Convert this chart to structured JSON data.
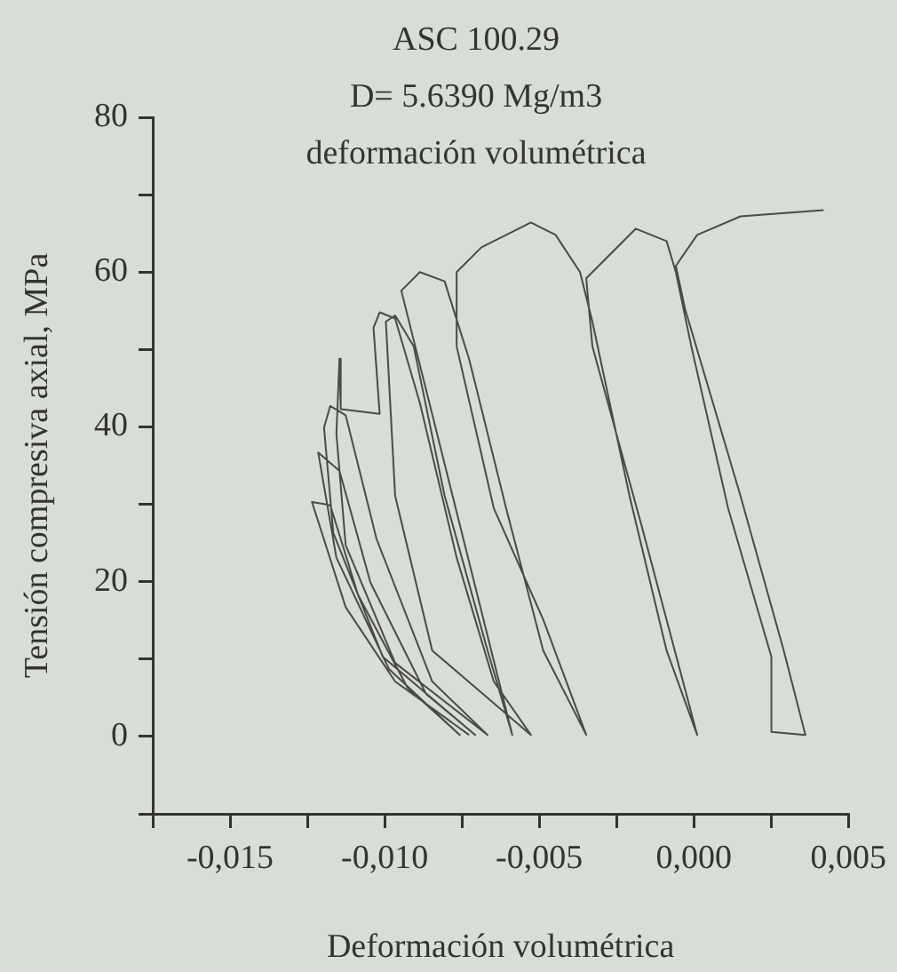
{
  "chart_data": {
    "type": "line",
    "title": "ASC 100.29",
    "subtitle": "D= 5.6390 Mg/m3\ndeformación volumétrica",
    "xlabel": "Deformación volumétrica",
    "ylabel": "Tensión compresiva axial, MPa",
    "xlim": [
      -0.0175,
      0.005
    ],
    "xticks": [
      {
        "value": -0.0175,
        "label": null
      },
      {
        "value": -0.015,
        "label": "-0,015"
      },
      {
        "value": -0.0125,
        "label": null
      },
      {
        "value": -0.01,
        "label": "-0,010"
      },
      {
        "value": -0.0075,
        "label": null
      },
      {
        "value": -0.005,
        "label": "-0,005"
      },
      {
        "value": -0.0025,
        "label": null
      },
      {
        "value": 0,
        "label": "0,000"
      },
      {
        "value": 0.0025,
        "label": null
      },
      {
        "value": 0.005,
        "label": "0,005"
      }
    ],
    "ylim": [
      -10,
      80
    ],
    "yticks": [
      {
        "value": -10,
        "label": null
      },
      0,
      {
        "value": 10,
        "label": null
      },
      20,
      {
        "value": 30,
        "label": null
      },
      40,
      {
        "value": 50,
        "label": null
      },
      60,
      {
        "value": 70,
        "label": null
      },
      80
    ],
    "grid": false,
    "legend": false,
    "marker": "none",
    "line_style": "solid",
    "series": [
      {
        "color": "#4a4a4a",
        "x": [
          -0.00727,
          -0.00966,
          -0.01126,
          -0.01235,
          -0.01176,
          -0.01086,
          -0.00926,
          -0.00757,
          -0.00986,
          -0.01156,
          -0.01215,
          -0.01146,
          -0.01046,
          -0.00866,
          -0.00707,
          -0.01006,
          -0.01166,
          -0.01196,
          -0.01176,
          -0.01126,
          -0.01026,
          -0.00846,
          -0.00667,
          -0.00966,
          -0.01126,
          -0.01156,
          -0.01146,
          -0.01142,
          -0.01016,
          -0.01036,
          -0.01016,
          -0.00966,
          -0.00886,
          -0.00767,
          -0.00647,
          -0.00527,
          -0.00846,
          -0.00966,
          -0.00996,
          -0.00966,
          -0.00906,
          -0.00806,
          -0.00667,
          -0.00587,
          -0.00946,
          -0.00886,
          -0.00806,
          -0.00727,
          -0.00607,
          -0.00487,
          -0.00348,
          -0.00487,
          -0.00647,
          -0.00767,
          -0.00767,
          -0.00687,
          -0.00527,
          -0.00447,
          -0.00368,
          -0.00328,
          -0.00208,
          -0.00088,
          0.00011,
          -0.00168,
          -0.00328,
          -0.00348,
          -0.00188,
          -0.00088,
          -0.00058,
          -8e-05,
          0.00111,
          0.00251,
          0.00251,
          0.00361,
          0.00291,
          0.00151,
          -0.00028,
          -0.00058,
          0.00011,
          0.00151,
          0.0042
        ],
        "values": [
          0.2,
          7.1,
          16.7,
          30.3,
          29.9,
          18.3,
          6.3,
          0.2,
          8.7,
          23.1,
          36.7,
          34.3,
          19.9,
          5.5,
          0.2,
          10.3,
          26.3,
          39.9,
          42.7,
          41.5,
          25.5,
          7.1,
          0.2,
          9.5,
          24.7,
          39.1,
          48.8,
          42.3,
          41.7,
          52.8,
          54.8,
          54.0,
          43.1,
          23.1,
          7.1,
          0.2,
          11.1,
          31.1,
          53.6,
          54.4,
          50.4,
          31.1,
          11.1,
          0.2,
          57.6,
          60.0,
          58.8,
          48.8,
          29.5,
          11.1,
          0.2,
          15.1,
          29.5,
          50.4,
          60.0,
          63.2,
          66.4,
          64.8,
          60.0,
          53.6,
          31.1,
          11.1,
          0.2,
          27.1,
          50.4,
          59.2,
          65.6,
          64.0,
          60.0,
          50.4,
          29.5,
          10.3,
          0.6,
          0.2,
          11.1,
          31.1,
          55.2,
          60.8,
          64.8,
          67.2,
          68.0
        ]
      }
    ]
  }
}
